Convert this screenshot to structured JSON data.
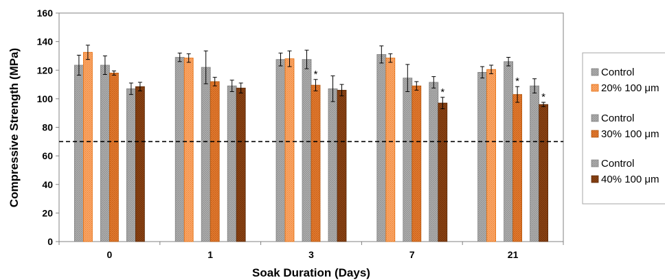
{
  "chart_data": {
    "type": "bar",
    "xlabel": "Soak Duration (Days)",
    "ylabel": "Compressive Strength (MPa)",
    "ylim": [
      0,
      160
    ],
    "yticks": [
      0,
      20,
      40,
      60,
      80,
      100,
      120,
      140,
      160
    ],
    "categories": [
      "0",
      "1",
      "3",
      "7",
      "21"
    ],
    "reference_line": 70,
    "legend_position": "right",
    "significance_marker": "*",
    "series": [
      {
        "name": "Control",
        "group": 1,
        "color": "#a6a6a6",
        "values": [
          123.5,
          129,
          127.5,
          131,
          118.5
        ],
        "errors": [
          7,
          3,
          4.5,
          6,
          4
        ],
        "significant": [
          false,
          false,
          false,
          false,
          false
        ]
      },
      {
        "name": "20% 100 μm",
        "group": 1,
        "color": "#f79646",
        "values": [
          132.5,
          128.5,
          128,
          128.5,
          120.5
        ],
        "errors": [
          5,
          3,
          5.5,
          3,
          3
        ],
        "significant": [
          false,
          false,
          false,
          false,
          false
        ]
      },
      {
        "name": "Control",
        "group": 2,
        "color": "#a6a6a6",
        "values": [
          123.5,
          122,
          127.5,
          114.5,
          126
        ],
        "errors": [
          6.5,
          11.5,
          6.5,
          9.5,
          3
        ],
        "significant": [
          false,
          false,
          false,
          false,
          false
        ]
      },
      {
        "name": "30% 100 μm",
        "group": 2,
        "color": "#e46c0a",
        "values": [
          118,
          112,
          109.5,
          109,
          103
        ],
        "errors": [
          1.5,
          3,
          4,
          3,
          5.5
        ],
        "significant": [
          false,
          false,
          true,
          false,
          true
        ]
      },
      {
        "name": "Control",
        "group": 3,
        "color": "#a6a6a6",
        "values": [
          107,
          109,
          107,
          111.5,
          109
        ],
        "errors": [
          4,
          4,
          9,
          4,
          5
        ],
        "significant": [
          false,
          false,
          false,
          false,
          false
        ]
      },
      {
        "name": "40% 100 μm",
        "group": 3,
        "color": "#843c0c",
        "values": [
          108.5,
          107.5,
          106,
          97,
          96
        ],
        "errors": [
          3,
          3.5,
          4,
          4,
          1.5
        ],
        "significant": [
          false,
          false,
          false,
          true,
          true
        ]
      }
    ]
  }
}
